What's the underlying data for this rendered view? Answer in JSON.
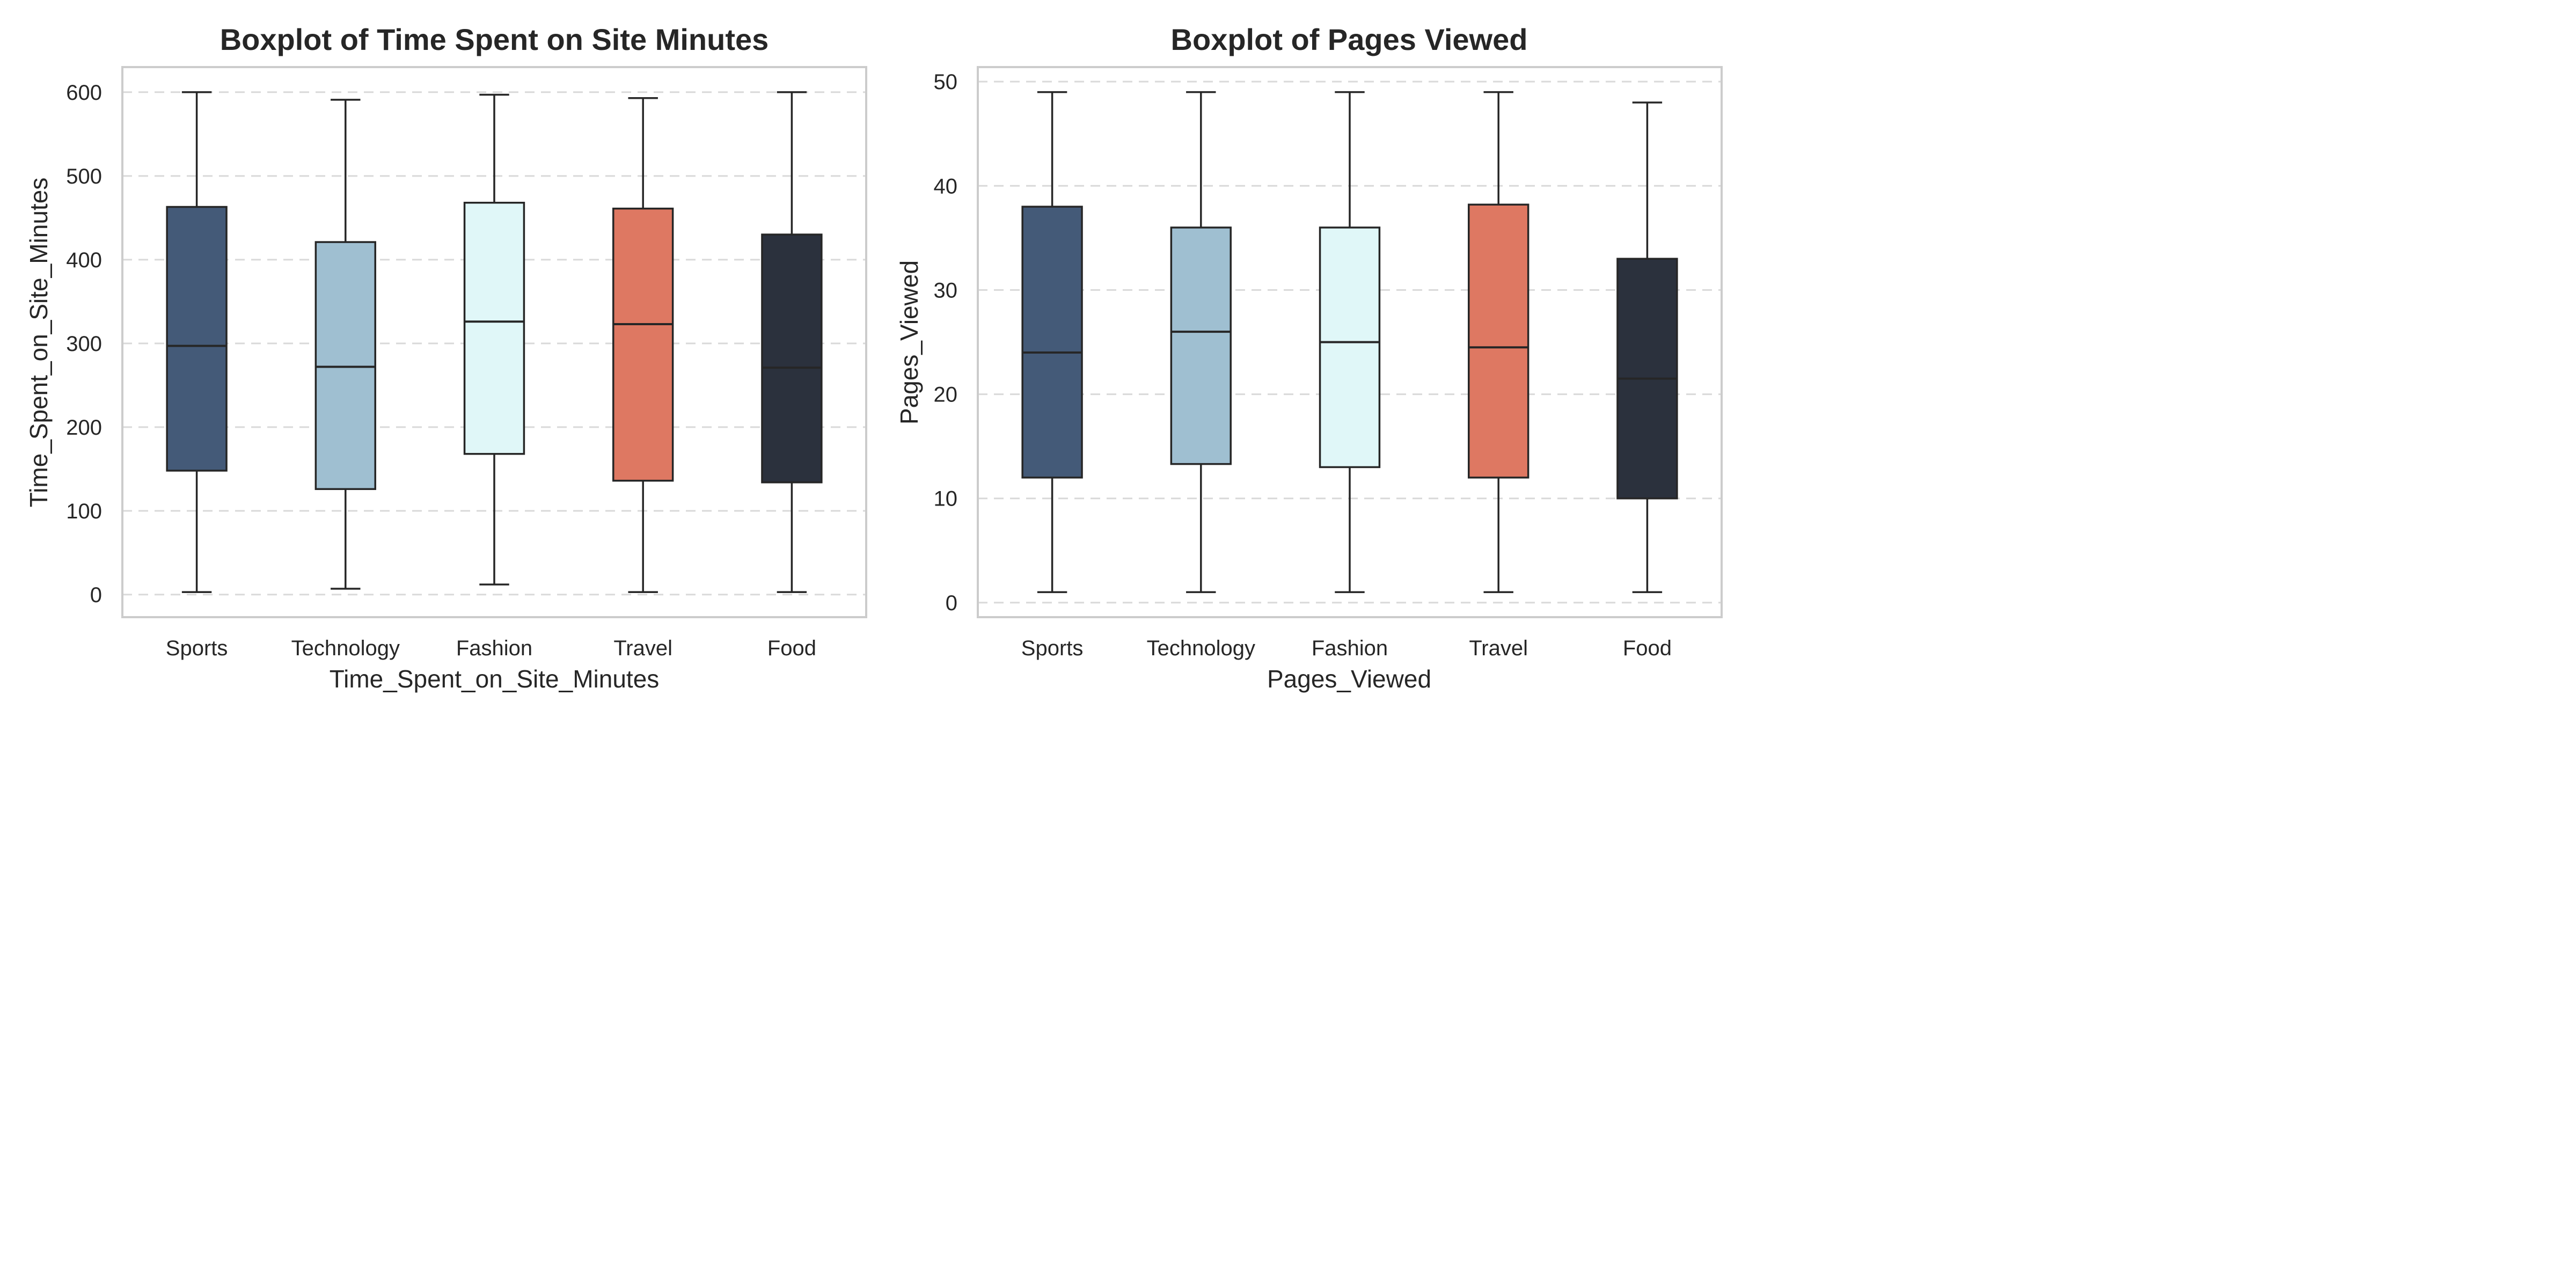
{
  "chart_data": [
    {
      "type": "box",
      "title": "Boxplot of Time Spent on Site Minutes",
      "xlabel": "Time_Spent_on_Site_Minutes",
      "ylabel": "Time_Spent_on_Site_Minutes",
      "ylim": [
        -27,
        630
      ],
      "yticks": [
        0,
        100,
        200,
        300,
        400,
        500,
        600
      ],
      "grid": "y-dashed",
      "categories": [
        "Sports",
        "Technology",
        "Fashion",
        "Travel",
        "Food"
      ],
      "colors": [
        "#445a78",
        "#9fbfd1",
        "#e0f7f8",
        "#de7862",
        "#2b313d"
      ],
      "boxes": [
        {
          "min": 3,
          "q1": 148,
          "median": 297,
          "q3": 463,
          "max": 600
        },
        {
          "min": 7,
          "q1": 126,
          "median": 272,
          "q3": 421,
          "max": 591
        },
        {
          "min": 12,
          "q1": 168,
          "median": 326,
          "q3": 468,
          "max": 597
        },
        {
          "min": 3,
          "q1": 136,
          "median": 323,
          "q3": 461,
          "max": 593
        },
        {
          "min": 3,
          "q1": 134,
          "median": 271,
          "q3": 430,
          "max": 600
        }
      ]
    },
    {
      "type": "box",
      "title": "Boxplot of Pages Viewed",
      "xlabel": "Pages_Viewed",
      "ylabel": "Pages_Viewed",
      "ylim": [
        -1.4,
        51.4
      ],
      "yticks": [
        0,
        10,
        20,
        30,
        40,
        50
      ],
      "grid": "y-dashed",
      "categories": [
        "Sports",
        "Technology",
        "Fashion",
        "Travel",
        "Food"
      ],
      "colors": [
        "#445a78",
        "#9fbfd1",
        "#e0f7f8",
        "#de7862",
        "#2b313d"
      ],
      "boxes": [
        {
          "min": 1,
          "q1": 12,
          "median": 24,
          "q3": 38,
          "max": 49
        },
        {
          "min": 1,
          "q1": 13.3,
          "median": 26,
          "q3": 36,
          "max": 49
        },
        {
          "min": 1,
          "q1": 13,
          "median": 25,
          "q3": 36,
          "max": 49
        },
        {
          "min": 1,
          "q1": 12,
          "median": 24.5,
          "q3": 38.2,
          "max": 49
        },
        {
          "min": 1,
          "q1": 10,
          "median": 21.5,
          "q3": 33,
          "max": 48
        }
      ]
    }
  ]
}
